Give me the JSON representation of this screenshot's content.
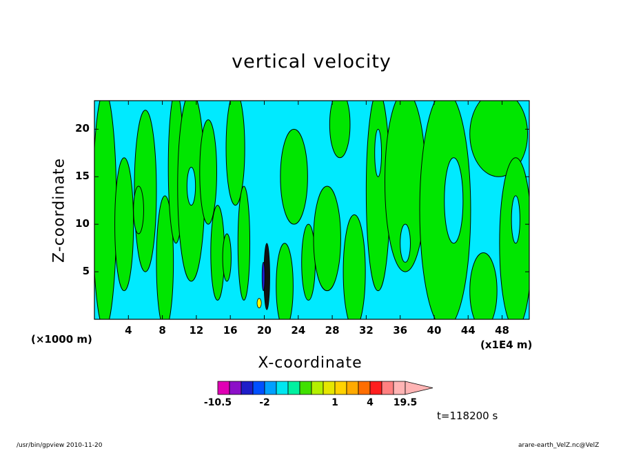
{
  "chart_data": {
    "type": "heatmap",
    "title": "vertical velocity",
    "xlabel": "X-coordinate",
    "ylabel": "Z-coordinate",
    "x_scale_note": "(×1000 m)",
    "x_unit_note": "(x1E4 m)",
    "x_ticks": [
      4,
      8,
      12,
      16,
      20,
      24,
      28,
      32,
      36,
      40,
      44,
      48
    ],
    "y_ticks": [
      5,
      10,
      15,
      20
    ],
    "xlim": [
      0,
      51.2
    ],
    "ylim": [
      0,
      23
    ],
    "time_label": "t=118200 s",
    "colorbar": {
      "levels": [
        -10.5,
        -8,
        -6,
        -4,
        -2,
        -1.5,
        -1,
        -0.5,
        0,
        0.5,
        1,
        1.5,
        2,
        4,
        8,
        12,
        19.5
      ],
      "labels": [
        "-10.5",
        "-2",
        "1",
        "4",
        "19.5"
      ],
      "label_values": [
        -10.5,
        -2,
        1,
        4,
        19.5
      ],
      "colors": [
        "#e000b4",
        "#8c10c8",
        "#1e1ec8",
        "#0050ff",
        "#00a0ff",
        "#00e6f0",
        "#00f0a0",
        "#40e000",
        "#b4f000",
        "#e6e600",
        "#ffd200",
        "#ffaa00",
        "#ff6e00",
        "#ff1e1e",
        "#ff8080",
        "#ffb4b4"
      ],
      "extend": "max"
    },
    "regions": {
      "background_color": "#00eaff",
      "positive_color": "#00e600",
      "strong_positive_color": "#ffff00",
      "strong_negative_color": "#000040"
    }
  },
  "footer": {
    "left": "/usr/bin/gpview   2010-11-20",
    "right": "arare-earth_VelZ.nc@VelZ"
  }
}
